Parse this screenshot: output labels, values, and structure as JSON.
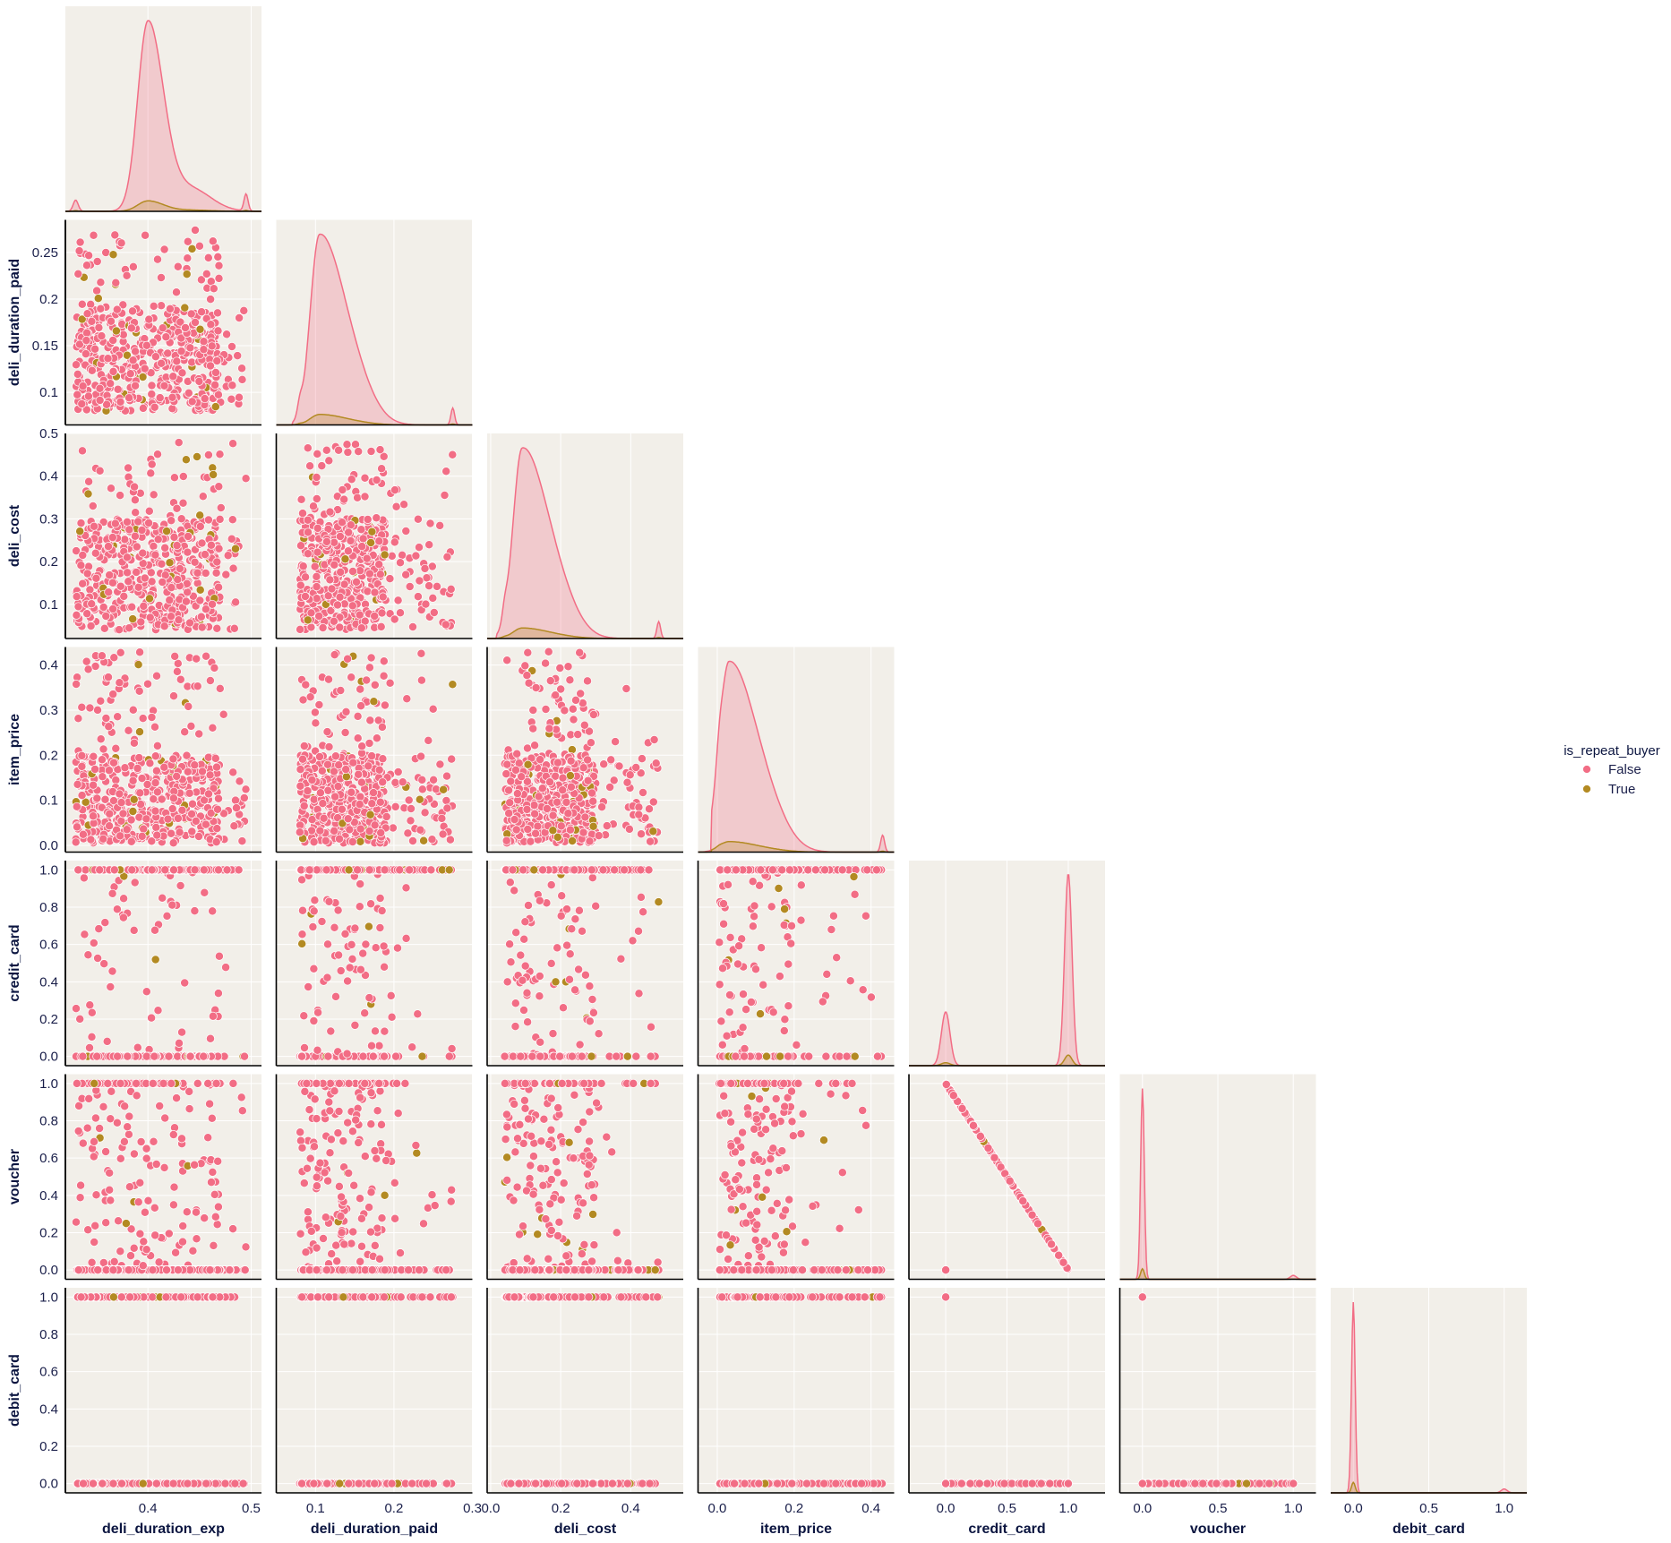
{
  "chart_data": {
    "type": "scatter",
    "title": "",
    "kind": "pairplot-corner",
    "hue": "is_repeat_buyer",
    "colors": {
      "panel_bg": "#f2efe9",
      "grid": "#ffffff",
      "axis": "#000000",
      "text": "#1a1f4a"
    },
    "series": [
      {
        "name": "False",
        "color": "#f26d85",
        "fill_alpha": 0.28
      },
      {
        "name": "True",
        "color": "#b38a22",
        "fill_alpha": 0.28
      }
    ],
    "variables": [
      {
        "name": "deli_duration_exp",
        "range": [
          0.32,
          0.51
        ],
        "ticks": [
          0.4,
          0.5
        ],
        "data_range": [
          0.33,
          0.495
        ],
        "peak": 0.4,
        "scatter_zone": [
          0.33,
          0.47
        ]
      },
      {
        "name": "deli_duration_paid",
        "range": [
          0.065,
          0.285
        ],
        "ticks": [
          0.1,
          0.15,
          0.2,
          0.25
        ],
        "ticks_x": [
          0.1,
          0.2,
          0.3
        ],
        "x_range": [
          0.05,
          0.3
        ],
        "data_range": [
          0.08,
          0.275
        ],
        "peak": 0.105,
        "scatter_zone": [
          0.08,
          0.19
        ]
      },
      {
        "name": "deli_cost",
        "range": [
          0.02,
          0.5
        ],
        "ticks": [
          0.1,
          0.2,
          0.3,
          0.4,
          0.5
        ],
        "ticks_x": [
          0.0,
          0.2,
          0.4
        ],
        "x_range": [
          -0.01,
          0.55
        ],
        "data_range": [
          0.04,
          0.48
        ],
        "peak": 0.09,
        "scatter_zone": [
          0.04,
          0.3
        ]
      },
      {
        "name": "item_price",
        "range": [
          -0.015,
          0.44
        ],
        "ticks": [
          0.0,
          0.1,
          0.2,
          0.3,
          0.4
        ],
        "ticks_x": [
          0.0,
          0.2,
          0.4
        ],
        "x_range": [
          -0.05,
          0.46
        ],
        "data_range": [
          0.005,
          0.43
        ],
        "peak": 0.03,
        "scatter_zone": [
          0.005,
          0.2
        ]
      },
      {
        "name": "credit_card",
        "range": [
          -0.05,
          1.05
        ],
        "ticks": [
          0.0,
          0.2,
          0.4,
          0.6,
          0.8,
          1.0
        ],
        "ticks_x": [
          0.0,
          0.5,
          1.0
        ],
        "x_range": [
          -0.3,
          1.3
        ],
        "data_range": [
          0.0,
          1.0
        ]
      },
      {
        "name": "voucher",
        "range": [
          -0.05,
          1.05
        ],
        "ticks": [
          0.0,
          0.2,
          0.4,
          0.6,
          0.8,
          1.0
        ],
        "ticks_x": [
          0.0,
          0.5,
          1.0
        ],
        "x_range": [
          -0.15,
          1.15
        ],
        "data_range": [
          0.0,
          1.0
        ]
      },
      {
        "name": "debit_card",
        "range": [
          -0.05,
          1.05
        ],
        "ticks": [
          0.0,
          0.2,
          0.4,
          0.6,
          0.8,
          1.0
        ],
        "ticks_x": [
          0.0,
          0.5,
          1.0
        ],
        "x_range": [
          -0.15,
          1.15
        ],
        "data_range": [
          0.0,
          1.0
        ]
      }
    ],
    "grid": true,
    "legend": "right"
  }
}
